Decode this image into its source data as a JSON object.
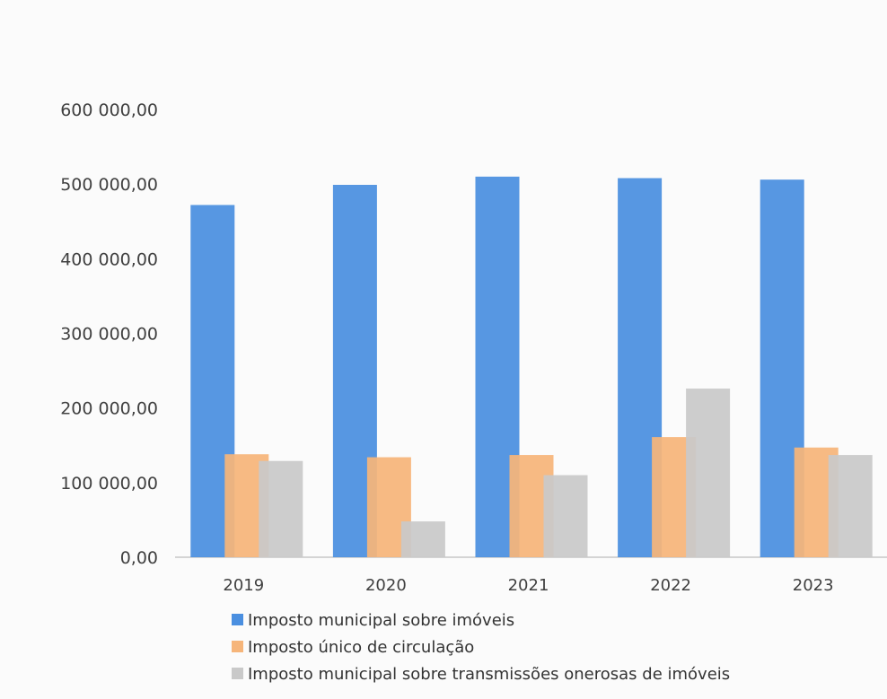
{
  "chart_data": {
    "type": "bar",
    "categories": [
      "2019",
      "2020",
      "2021",
      "2022",
      "2023"
    ],
    "series": [
      {
        "name": "Imposto municipal sobre imóveis",
        "color": "#4a8fe0",
        "values": [
          472000,
          499000,
          510000,
          508000,
          506000
        ]
      },
      {
        "name": "Imposto único de circulação",
        "color": "#f6b57a",
        "values": [
          138000,
          134000,
          137000,
          161000,
          147000
        ]
      },
      {
        "name": "Imposto municipal sobre transmissões onerosas de imóveis",
        "color": "#c9c9c9",
        "values": [
          129000,
          48000,
          110000,
          226000,
          137000
        ]
      }
    ],
    "y_ticks": [
      "0,00",
      "100 000,00",
      "200 000,00",
      "300 000,00",
      "400 000,00",
      "500 000,00",
      "600 000,00"
    ],
    "ylim": [
      0,
      600000
    ],
    "grid": false,
    "legend_position": "bottom"
  }
}
